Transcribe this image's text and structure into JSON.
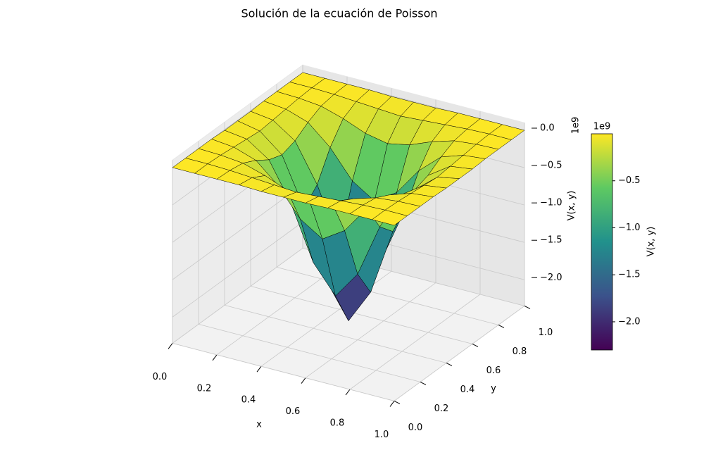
{
  "chart_data": {
    "type": "surface",
    "title": "Solución de la ecuación de Poisson",
    "xlabel": "x",
    "ylabel": "y",
    "zlabel": "V(x, y)",
    "z_offset_label": "1e9",
    "x": [
      0,
      0.1,
      0.2,
      0.3,
      0.4,
      0.5,
      0.6,
      0.7,
      0.8,
      0.9,
      1
    ],
    "y": [
      0,
      0.1,
      0.2,
      0.3,
      0.4,
      0.5,
      0.6,
      0.7,
      0.8,
      0.9,
      1
    ],
    "z": [
      [
        0,
        0,
        0,
        0,
        -0.01,
        -0.01,
        -0.01,
        0,
        0,
        0,
        0
      ],
      [
        0,
        0,
        -0.01,
        -0.03,
        -0.05,
        -0.07,
        -0.05,
        -0.03,
        -0.01,
        0,
        0
      ],
      [
        0,
        -0.01,
        -0.04,
        -0.13,
        -0.25,
        -0.31,
        -0.25,
        -0.13,
        -0.04,
        -0.01,
        0
      ],
      [
        0,
        -0.03,
        -0.13,
        -0.39,
        -0.76,
        -0.95,
        -0.76,
        -0.39,
        -0.13,
        -0.03,
        0
      ],
      [
        -0.01,
        -0.05,
        -0.25,
        -0.76,
        -1.47,
        -1.84,
        -1.47,
        -0.76,
        -0.25,
        -0.05,
        -0.01
      ],
      [
        -0.01,
        -0.07,
        -0.31,
        -0.95,
        -1.84,
        -2.3,
        -1.84,
        -0.95,
        -0.31,
        -0.07,
        -0.01
      ],
      [
        -0.01,
        -0.05,
        -0.25,
        -0.76,
        -1.47,
        -1.84,
        -1.47,
        -0.76,
        -0.25,
        -0.05,
        -0.01
      ],
      [
        0,
        -0.03,
        -0.13,
        -0.39,
        -0.76,
        -0.95,
        -0.76,
        -0.39,
        -0.13,
        -0.03,
        0
      ],
      [
        0,
        -0.01,
        -0.04,
        -0.13,
        -0.25,
        -0.31,
        -0.25,
        -0.13,
        -0.04,
        -0.01,
        0
      ],
      [
        0,
        0,
        -0.01,
        -0.03,
        -0.05,
        -0.07,
        -0.05,
        -0.03,
        -0.01,
        0,
        0
      ],
      [
        0,
        0,
        0,
        0,
        -0.01,
        -0.01,
        -0.01,
        0,
        0,
        0,
        0
      ]
    ],
    "xlim": [
      0,
      1
    ],
    "ylim": [
      0,
      1
    ],
    "zlim": [
      -2.35,
      0.1
    ],
    "xticks": [
      {
        "value": 0,
        "label": "0.0"
      },
      0.2,
      0.4,
      0.6,
      0.8,
      {
        "value": 1,
        "label": "1.0"
      }
    ],
    "yticks": [
      {
        "value": 0,
        "label": "0.0"
      },
      0.2,
      0.4,
      0.6,
      0.8,
      {
        "value": 1,
        "label": "1.0"
      }
    ],
    "zticks": [
      {
        "value": 0,
        "label": "0.0"
      },
      {
        "value": -0.5,
        "label": "−0.5"
      },
      {
        "value": -1,
        "label": "−1.0"
      },
      {
        "value": -1.5,
        "label": "−1.5"
      },
      {
        "value": -2,
        "label": "−2.0"
      }
    ],
    "grid": true,
    "colormap": "viridis",
    "edgecolor": "#000000",
    "colorbar": {
      "label": "V(x, y)",
      "offset_label": "1e9",
      "lim": [
        -2.3,
        0
      ],
      "ticks": [
        {
          "value": -0.5,
          "label": "−0.5"
        },
        {
          "value": -1,
          "label": "−1.0"
        },
        {
          "value": -1.5,
          "label": "−1.5"
        },
        {
          "value": -2,
          "label": "−2.0"
        }
      ]
    }
  }
}
